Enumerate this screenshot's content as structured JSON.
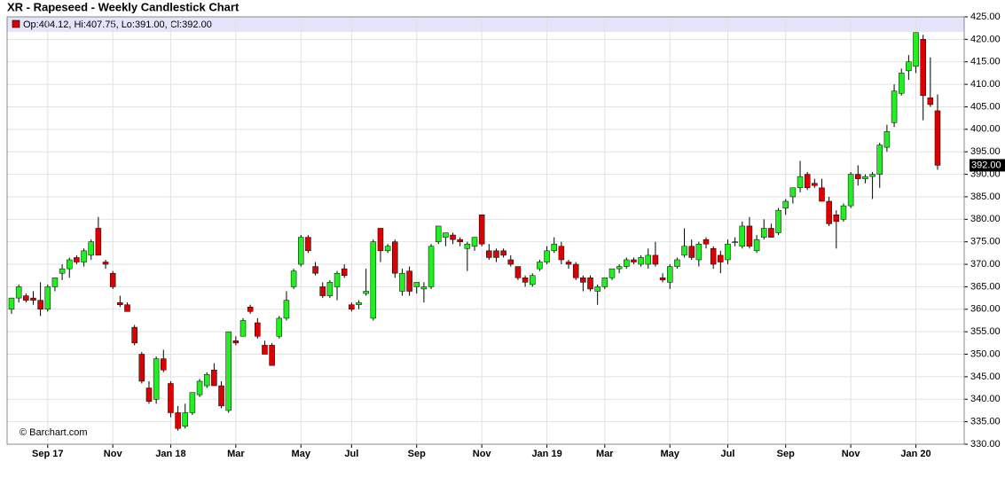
{
  "chart_data": {
    "type": "candlestick",
    "title": "XR - Rapeseed - Weekly Candlestick Chart",
    "info": "Op:404.12, Hi:407.75, Lo:391.00, Cl:392.00",
    "credit": "© Barchart.com",
    "up_color": "#22ee22",
    "down_color": "#dd0000",
    "ylim": [
      330,
      425
    ],
    "yticks": [
      {
        "value": 330,
        "label": "330.00"
      },
      {
        "value": 335,
        "label": "335.00"
      },
      {
        "value": 340,
        "label": "340.00"
      },
      {
        "value": 345,
        "label": "345.00"
      },
      {
        "value": 350,
        "label": "350.00"
      },
      {
        "value": 355,
        "label": "355.00"
      },
      {
        "value": 360,
        "label": "360.00"
      },
      {
        "value": 365,
        "label": "365.00"
      },
      {
        "value": 370,
        "label": "370.00"
      },
      {
        "value": 375,
        "label": "375.00"
      },
      {
        "value": 380,
        "label": "380.00"
      },
      {
        "value": 385,
        "label": "385.00"
      },
      {
        "value": 390,
        "label": "390.00"
      },
      {
        "value": 395,
        "label": "395.00"
      },
      {
        "value": 400,
        "label": "400.00"
      },
      {
        "value": 405,
        "label": "405.00"
      },
      {
        "value": 410,
        "label": "410.00"
      },
      {
        "value": 415,
        "label": "415.00"
      },
      {
        "value": 420,
        "label": "420.00"
      },
      {
        "value": 425,
        "label": "425.00"
      }
    ],
    "last_price": {
      "value": 392,
      "label": "392.00"
    },
    "grid": true,
    "categories": [
      null,
      null,
      null,
      null,
      null,
      "Sep 17",
      null,
      null,
      null,
      null,
      null,
      null,
      null,
      null,
      "Nov",
      null,
      null,
      null,
      null,
      null,
      null,
      null,
      "Jan 18",
      null,
      null,
      null,
      null,
      null,
      null,
      null,
      null,
      "Mar",
      null,
      null,
      null,
      null,
      null,
      null,
      null,
      null,
      "May",
      null,
      null,
      null,
      null,
      null,
      null,
      "Jul",
      null,
      null,
      null,
      null,
      null,
      null,
      null,
      null,
      "Sep",
      null,
      null,
      null,
      null,
      null,
      null,
      null,
      null,
      "Nov",
      null,
      null,
      null,
      null,
      null,
      null,
      null,
      null,
      "Jan 19",
      null,
      null,
      null,
      null,
      null,
      null,
      null,
      "Mar",
      null,
      null,
      null,
      null,
      null,
      null,
      null,
      null,
      "May",
      null,
      null,
      null,
      null,
      null,
      null,
      null,
      "Jul",
      null,
      null,
      null,
      null,
      null,
      null,
      null,
      "Sep",
      null,
      null,
      null,
      null,
      null,
      null,
      null,
      null,
      "Nov",
      null,
      null,
      null,
      null,
      null,
      null,
      null,
      null,
      "Jan 20",
      null,
      null,
      null
    ],
    "ohlc": [
      [
        360,
        362.5,
        359,
        362.5
      ],
      [
        362.5,
        365.5,
        361.5,
        365
      ],
      [
        363,
        363.5,
        361.5,
        362
      ],
      [
        362.5,
        364,
        361,
        362
      ],
      [
        362,
        366,
        358.5,
        360
      ],
      [
        360,
        365.5,
        359.5,
        365
      ],
      [
        365,
        367,
        364,
        367
      ],
      [
        368,
        370,
        366.5,
        369
      ],
      [
        369,
        371.5,
        367,
        371
      ],
      [
        371.5,
        372,
        370,
        370.5
      ],
      [
        370.5,
        373.5,
        369.5,
        373
      ],
      [
        372,
        375.5,
        371,
        375
      ],
      [
        378,
        380.5,
        372,
        372
      ],
      [
        370.5,
        371,
        369,
        370
      ],
      [
        368,
        368.5,
        364.5,
        365
      ],
      [
        361.5,
        363,
        360.5,
        361
      ],
      [
        361,
        361.5,
        359.5,
        359.5
      ],
      [
        356,
        356.5,
        352,
        352.5
      ],
      [
        350,
        350.5,
        343.5,
        344
      ],
      [
        342.5,
        344,
        339,
        339.5
      ],
      [
        340,
        349.5,
        339,
        349
      ],
      [
        349,
        351,
        346,
        346.5
      ],
      [
        343.5,
        344,
        336,
        337
      ],
      [
        337,
        338.5,
        333,
        333.5
      ],
      [
        334,
        339,
        333.5,
        337
      ],
      [
        337,
        341.5,
        336.5,
        341.5
      ],
      [
        341,
        344.5,
        340.5,
        344
      ],
      [
        343,
        346,
        342.5,
        345.5
      ],
      [
        346.5,
        348,
        343,
        343
      ],
      [
        343,
        344,
        338,
        338.5
      ],
      [
        337.5,
        355,
        337,
        355
      ],
      [
        353,
        354,
        352,
        352.5
      ],
      [
        354,
        358,
        354,
        357.5
      ],
      [
        360.5,
        361,
        359,
        359.5
      ],
      [
        357,
        358,
        353.5,
        354
      ],
      [
        352,
        353,
        350,
        350
      ],
      [
        352,
        352.5,
        347.5,
        347.5
      ],
      [
        354,
        358.5,
        353.5,
        358
      ],
      [
        358,
        364,
        357.5,
        362
      ],
      [
        365,
        369,
        364.5,
        368.5
      ],
      [
        370,
        376.5,
        369.5,
        376
      ],
      [
        376,
        376.5,
        372.5,
        373
      ],
      [
        369.5,
        370.5,
        367.5,
        368
      ],
      [
        365,
        366,
        362.5,
        363
      ],
      [
        363,
        366.5,
        362.5,
        366
      ],
      [
        365,
        368.5,
        362,
        368
      ],
      [
        369,
        370,
        367,
        367.5
      ],
      [
        361,
        361.5,
        359.5,
        360
      ],
      [
        361,
        362,
        360,
        361.5
      ],
      [
        363.5,
        369,
        363,
        364
      ],
      [
        358,
        375.5,
        357.5,
        375
      ],
      [
        378,
        378,
        370.5,
        373
      ],
      [
        373,
        374.5,
        372.5,
        374
      ],
      [
        375,
        375.5,
        367,
        368
      ],
      [
        364,
        369,
        363,
        368
      ],
      [
        368.5,
        369.5,
        363,
        364
      ],
      [
        365,
        366,
        363.5,
        366
      ],
      [
        364.5,
        366,
        361.5,
        365
      ],
      [
        365,
        374.5,
        364.5,
        374
      ],
      [
        375,
        378.5,
        374.5,
        378.5
      ],
      [
        376,
        377,
        374,
        377
      ],
      [
        376.5,
        377,
        374.5,
        375.5
      ],
      [
        375.5,
        376,
        374,
        375
      ],
      [
        373.5,
        375,
        368.5,
        374.5
      ],
      [
        374,
        376,
        373,
        376
      ],
      [
        381,
        381,
        374,
        374.5
      ],
      [
        373,
        374.5,
        371,
        371.5
      ],
      [
        373,
        373.5,
        370.5,
        371.5
      ],
      [
        373,
        373.5,
        371.5,
        372
      ],
      [
        371,
        372,
        369.5,
        370
      ],
      [
        369.5,
        369.5,
        366.5,
        367
      ],
      [
        367,
        367.5,
        365,
        366
      ],
      [
        365.5,
        368,
        365,
        367.5
      ],
      [
        369,
        371,
        368.5,
        370.5
      ],
      [
        370.5,
        374,
        370,
        373
      ],
      [
        373,
        376,
        372.5,
        374.5
      ],
      [
        374,
        375,
        370,
        371
      ],
      [
        370.5,
        371,
        369,
        370
      ],
      [
        370,
        370.5,
        366.5,
        367
      ],
      [
        367,
        367.5,
        364,
        366
      ],
      [
        367,
        367.5,
        364,
        364.5
      ],
      [
        364,
        365.5,
        361,
        365
      ],
      [
        365,
        367,
        364.5,
        367
      ],
      [
        367,
        369,
        366.5,
        369
      ],
      [
        369,
        370,
        368,
        369.5
      ],
      [
        369.5,
        371.5,
        369,
        371
      ],
      [
        371,
        371.5,
        370,
        370.5
      ],
      [
        370,
        372,
        369.5,
        371.5
      ],
      [
        370,
        373.5,
        369,
        372
      ],
      [
        372,
        375,
        369.5,
        370
      ],
      [
        367,
        368,
        366,
        366.5
      ],
      [
        366,
        370,
        364.5,
        369.5
      ],
      [
        369.5,
        371.5,
        369,
        371
      ],
      [
        372,
        378,
        371.5,
        374
      ],
      [
        374,
        375.5,
        371,
        371.5
      ],
      [
        371,
        375,
        369.5,
        374.5
      ],
      [
        375.5,
        376,
        373.5,
        374.5
      ],
      [
        373.5,
        374,
        369,
        370
      ],
      [
        372,
        373,
        368,
        370.5
      ],
      [
        371,
        375.5,
        370,
        374.5
      ],
      [
        375,
        376,
        374,
        375
      ],
      [
        374,
        379.5,
        373.5,
        378.5
      ],
      [
        378.5,
        380.5,
        373.5,
        374
      ],
      [
        373,
        376.5,
        372.5,
        375.5
      ],
      [
        376,
        380,
        375.5,
        378
      ],
      [
        378,
        379,
        376,
        376
      ],
      [
        377,
        382.5,
        376.5,
        382
      ],
      [
        382.5,
        384.5,
        381,
        384
      ],
      [
        385,
        387,
        383.5,
        387
      ],
      [
        387,
        393,
        386,
        389.5
      ],
      [
        390,
        390.5,
        386.5,
        387
      ],
      [
        388,
        389,
        387,
        387.5
      ],
      [
        387,
        389,
        384,
        384
      ],
      [
        384,
        385,
        378.5,
        379
      ],
      [
        381,
        382,
        373.5,
        379.5
      ],
      [
        380,
        383.5,
        379.5,
        383
      ],
      [
        383,
        390.5,
        382.5,
        390
      ],
      [
        390,
        392,
        387.5,
        389
      ],
      [
        389,
        390,
        388,
        389.5
      ],
      [
        389.5,
        390.5,
        384.5,
        390
      ],
      [
        390,
        397,
        387,
        396.5
      ],
      [
        396,
        401,
        395,
        399.5
      ],
      [
        401.5,
        410,
        400.5,
        408.5
      ],
      [
        408,
        413.5,
        407.5,
        412.5
      ],
      [
        413,
        416.5,
        411,
        415
      ],
      [
        414,
        421.5,
        412.5,
        421.5
      ],
      [
        420,
        421,
        402,
        407.5
      ],
      [
        407,
        416,
        405,
        405.5
      ],
      [
        404.12,
        407.75,
        391,
        392
      ]
    ]
  }
}
